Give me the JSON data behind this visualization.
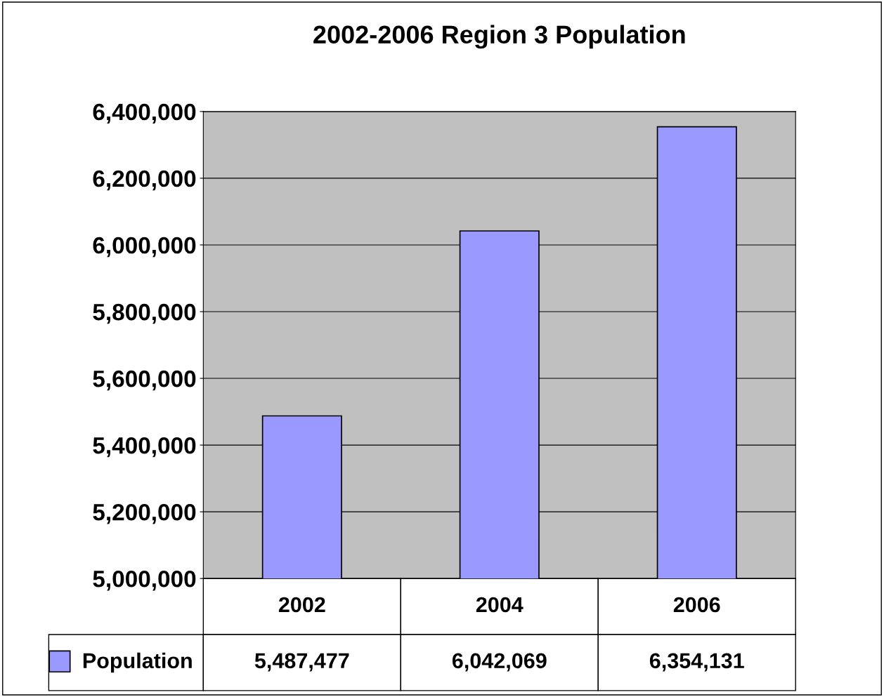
{
  "chart_data": {
    "type": "bar",
    "title": "2002-2006 Region 3 Population",
    "categories": [
      "2002",
      "2004",
      "2006"
    ],
    "series": [
      {
        "name": "Population",
        "color": "#9999ff",
        "values": [
          5487477,
          6042069,
          6354131
        ],
        "value_labels": [
          "5,487,477",
          "6,042,069",
          "6,354,131"
        ]
      }
    ],
    "ylim": [
      5000000,
      6400000
    ],
    "yticks": [
      {
        "value": 5000000,
        "label": "5,000,000"
      },
      {
        "value": 5200000,
        "label": "5,200,000"
      },
      {
        "value": 5400000,
        "label": "5,400,000"
      },
      {
        "value": 5600000,
        "label": "5,600,000"
      },
      {
        "value": 5800000,
        "label": "5,800,000"
      },
      {
        "value": 6000000,
        "label": "6,000,000"
      },
      {
        "value": 6200000,
        "label": "6,200,000"
      },
      {
        "value": 6400000,
        "label": "6,400,000"
      }
    ],
    "grid": "y",
    "legend": "bottom left"
  }
}
